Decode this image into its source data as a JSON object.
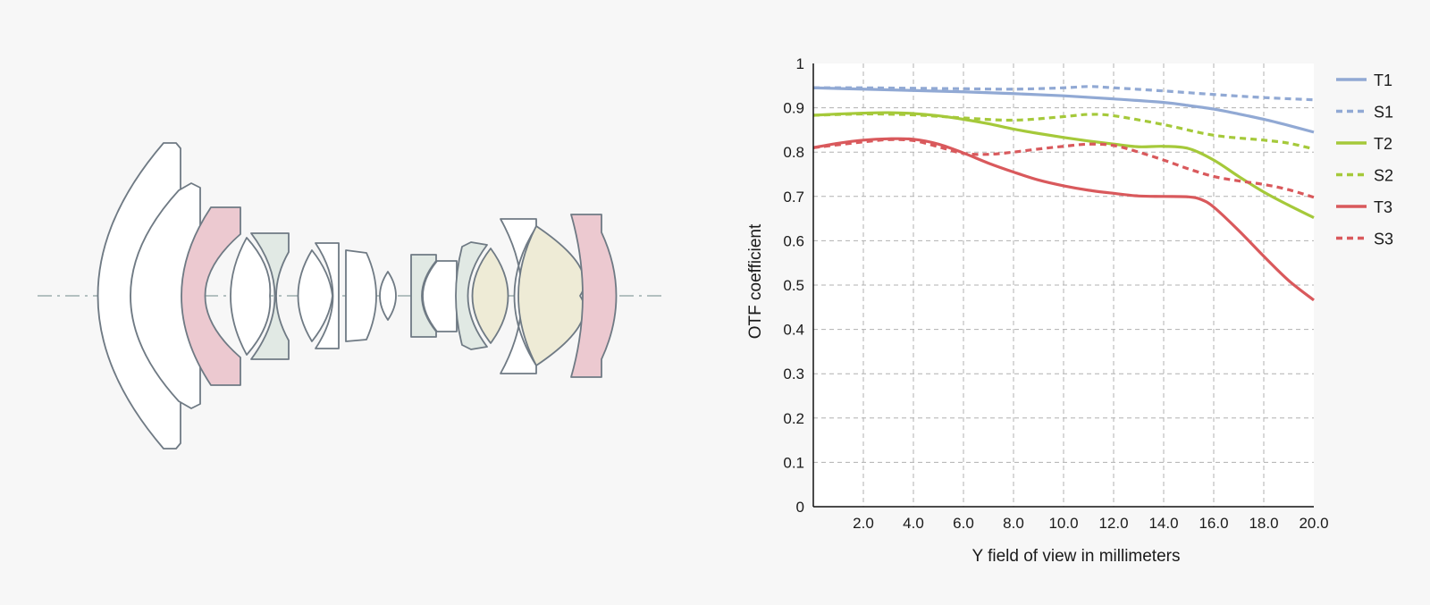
{
  "colors": {
    "background": "#f7f7f7",
    "plot_background": "#ffffff",
    "grid": "#b0b0b0",
    "lens_stroke": "#6f7a84",
    "lens_fill_white": "#ffffff",
    "lens_fill_pink": "#ecc9d0",
    "lens_fill_green": "#e1e9e4",
    "lens_fill_yellow": "#eeebd6",
    "optical_axis": "#8aa0a0"
  },
  "lens_diagram": {
    "description_icon": "lens-cross-section",
    "elements": [
      {
        "name": "element-1",
        "fill": "white"
      },
      {
        "name": "element-2",
        "fill": "white"
      },
      {
        "name": "element-3",
        "fill": "pink"
      },
      {
        "name": "element-4",
        "fill": "white"
      },
      {
        "name": "element-5",
        "fill": "green"
      },
      {
        "name": "element-6",
        "fill": "white"
      },
      {
        "name": "element-7",
        "fill": "white"
      },
      {
        "name": "element-8",
        "fill": "white"
      },
      {
        "name": "element-9",
        "fill": "white"
      },
      {
        "name": "element-10",
        "fill": "green"
      },
      {
        "name": "element-11",
        "fill": "white"
      },
      {
        "name": "element-12",
        "fill": "green"
      },
      {
        "name": "element-13",
        "fill": "yellow"
      },
      {
        "name": "element-14",
        "fill": "white"
      },
      {
        "name": "element-15",
        "fill": "yellow"
      },
      {
        "name": "element-16",
        "fill": "pink"
      }
    ]
  },
  "chart_data": {
    "type": "line",
    "title": "",
    "xlabel": "Y field of view in millimeters",
    "ylabel": "OTF coefficient",
    "xlim": [
      0,
      20
    ],
    "ylim": [
      0,
      1
    ],
    "x_ticks": [
      "2.0",
      "4.0",
      "6.0",
      "8.0",
      "10.0",
      "12.0",
      "14.0",
      "16.0",
      "18.0",
      "20.0"
    ],
    "y_ticks": [
      "0",
      "0.1",
      "0.2",
      "0.3",
      "0.4",
      "0.5",
      "0.6",
      "0.7",
      "0.8",
      "0.9",
      "1"
    ],
    "grid": true,
    "legend_position": "right",
    "series": [
      {
        "name": "T1",
        "color": "#91a9d4",
        "dash": false,
        "x": [
          0,
          2,
          4,
          6,
          8,
          10,
          12,
          14,
          15,
          16,
          17,
          18,
          19,
          20
        ],
        "y": [
          0.945,
          0.942,
          0.939,
          0.936,
          0.932,
          0.927,
          0.92,
          0.912,
          0.905,
          0.897,
          0.886,
          0.874,
          0.86,
          0.845
        ]
      },
      {
        "name": "S1",
        "color": "#91a9d4",
        "dash": true,
        "x": [
          0,
          2,
          4,
          6,
          8,
          10,
          11,
          12,
          14,
          16,
          18,
          20
        ],
        "y": [
          0.945,
          0.945,
          0.944,
          0.943,
          0.942,
          0.945,
          0.948,
          0.945,
          0.938,
          0.93,
          0.923,
          0.918
        ]
      },
      {
        "name": "T2",
        "color": "#a5c93a",
        "dash": false,
        "x": [
          0,
          1,
          2,
          3,
          4,
          5,
          6,
          7,
          8,
          9,
          10,
          11,
          12,
          13,
          14,
          15,
          16,
          17,
          18,
          19,
          20
        ],
        "y": [
          0.883,
          0.886,
          0.888,
          0.889,
          0.887,
          0.882,
          0.874,
          0.864,
          0.852,
          0.842,
          0.833,
          0.825,
          0.818,
          0.812,
          0.813,
          0.808,
          0.782,
          0.745,
          0.71,
          0.68,
          0.652
        ]
      },
      {
        "name": "S2",
        "color": "#a5c93a",
        "dash": true,
        "x": [
          0,
          2,
          4,
          6,
          8,
          10,
          11,
          12,
          14,
          16,
          18,
          19,
          20
        ],
        "y": [
          0.883,
          0.886,
          0.884,
          0.877,
          0.872,
          0.88,
          0.885,
          0.882,
          0.862,
          0.838,
          0.827,
          0.82,
          0.807
        ]
      },
      {
        "name": "T3",
        "color": "#d9595c",
        "dash": false,
        "x": [
          0,
          1,
          2,
          3,
          4,
          5,
          6,
          7,
          8,
          9,
          10,
          11,
          12,
          13,
          14,
          15,
          15.5,
          16,
          17,
          18,
          19,
          20
        ],
        "y": [
          0.81,
          0.82,
          0.827,
          0.83,
          0.829,
          0.818,
          0.798,
          0.775,
          0.755,
          0.737,
          0.724,
          0.714,
          0.707,
          0.701,
          0.7,
          0.699,
          0.693,
          0.676,
          0.623,
          0.565,
          0.51,
          0.466
        ]
      },
      {
        "name": "S3",
        "color": "#d9595c",
        "dash": true,
        "x": [
          0,
          2,
          3,
          4,
          5,
          6,
          7,
          8,
          9,
          10,
          11,
          12,
          13,
          14,
          15,
          16,
          17,
          18,
          19,
          20
        ],
        "y": [
          0.81,
          0.823,
          0.828,
          0.826,
          0.812,
          0.797,
          0.795,
          0.8,
          0.807,
          0.813,
          0.818,
          0.815,
          0.8,
          0.782,
          0.762,
          0.745,
          0.735,
          0.727,
          0.715,
          0.698
        ]
      }
    ]
  }
}
